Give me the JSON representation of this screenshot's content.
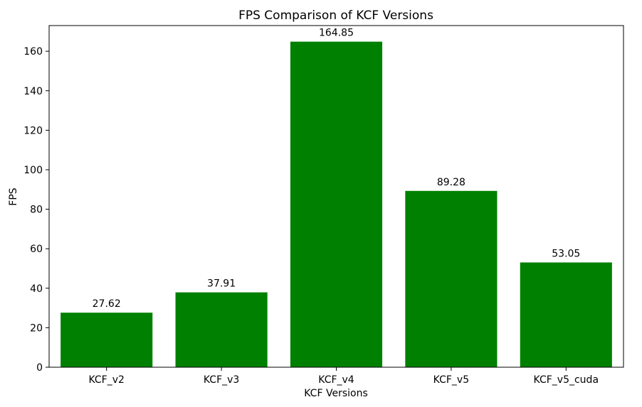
{
  "chart_data": {
    "type": "bar",
    "title": "FPS Comparison of KCF Versions",
    "xlabel": "KCF Versions",
    "ylabel": "FPS",
    "categories": [
      "KCF_v2",
      "KCF_v3",
      "KCF_v4",
      "KCF_v5",
      "KCF_v5_cuda"
    ],
    "values": [
      27.62,
      37.91,
      164.85,
      89.28,
      53.05
    ],
    "value_labels": [
      "27.62",
      "37.91",
      "164.85",
      "89.28",
      "53.05"
    ],
    "ylim": [
      0,
      173
    ],
    "yticks": [
      0,
      20,
      40,
      60,
      80,
      100,
      120,
      140,
      160
    ],
    "bar_color": "#008000",
    "grid": false,
    "legend": "none"
  }
}
